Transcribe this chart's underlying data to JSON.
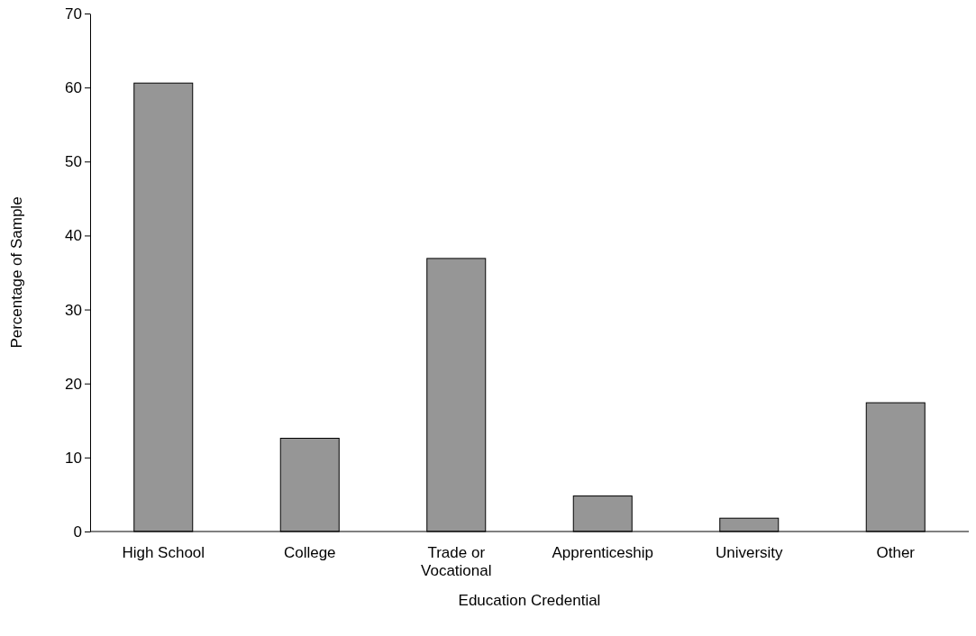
{
  "chart_data": {
    "type": "bar",
    "xlabel": "Education Credential",
    "ylabel": "Percentage of Sample",
    "categories": [
      "High School",
      "College",
      "Trade or Vocational",
      "Apprenticeship",
      "University",
      "Other"
    ],
    "values": [
      60.6,
      12.6,
      36.9,
      4.8,
      1.8,
      17.4
    ],
    "color": "#969696",
    "ylim": [
      0,
      70
    ],
    "yticks": [
      0,
      10,
      20,
      30,
      40,
      50,
      60,
      70
    ],
    "grid": false
  }
}
